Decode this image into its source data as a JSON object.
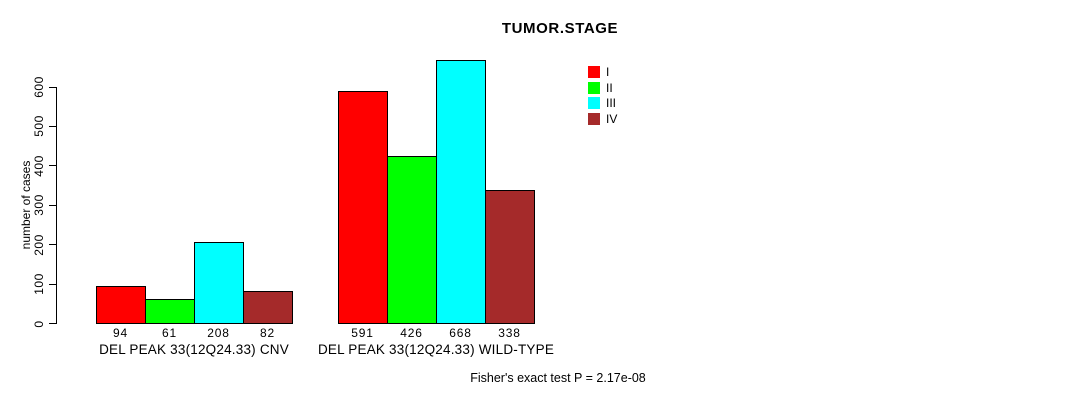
{
  "chart_data": {
    "type": "bar",
    "title": "TUMOR.STAGE",
    "ylabel": "number of cases",
    "xlabel": "",
    "ylim": [
      0,
      600
    ],
    "yticks": [
      0,
      100,
      200,
      300,
      400,
      500,
      600
    ],
    "grid": false,
    "legend_position": "top-right",
    "categories": [
      "DEL PEAK 33(12Q24.33) CNV",
      "DEL PEAK 33(12Q24.33) WILD-TYPE"
    ],
    "series": [
      {
        "name": "I",
        "color": "#ff0000",
        "values": [
          94,
          591
        ]
      },
      {
        "name": "II",
        "color": "#00ff00",
        "values": [
          61,
          426
        ]
      },
      {
        "name": "III",
        "color": "#00ffff",
        "values": [
          208,
          668
        ]
      },
      {
        "name": "IV",
        "color": "#a52a2a",
        "values": [
          82,
          338
        ]
      }
    ],
    "footnote": "Fisher's exact test P = 2.17e-08"
  }
}
